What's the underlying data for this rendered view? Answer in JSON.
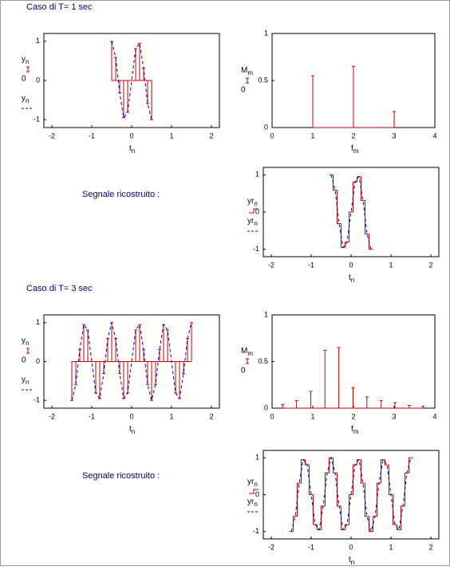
{
  "sections": [
    {
      "title": "Caso di T= 1 sec",
      "caption": "Segnale ricostruito :"
    },
    {
      "title": "Caso di T= 3 sec",
      "caption": "Segnale ricostruito :"
    }
  ],
  "chart_data": [
    {
      "type": "stem",
      "x": [
        -0.5,
        -0.4,
        -0.3,
        -0.2,
        -0.1,
        0,
        0.1,
        0.2,
        0.3,
        0.4,
        0.5
      ],
      "xlim": [
        -2.2,
        2.2
      ],
      "ylim": [
        -1.2,
        1.2
      ],
      "xticks": [
        -2,
        -1,
        0,
        1,
        2
      ],
      "yticks": [
        -1,
        0,
        1
      ],
      "xlabel": "t",
      "xlabel_sub": "n",
      "zero_label": "0",
      "series": [
        {
          "name": "y",
          "name_sub": "n",
          "color": "#cc0000",
          "values": [
            1,
            0.59,
            -0.31,
            -0.95,
            -0.81,
            0,
            0.81,
            0.95,
            0.31,
            -0.59,
            -1
          ]
        },
        {
          "name": "y",
          "name_sub": "n",
          "color": "#0000cc",
          "line": "dashed",
          "values": [
            1,
            0.59,
            -0.31,
            -0.95,
            -0.81,
            0,
            0.81,
            0.95,
            0.31,
            -0.59,
            -1
          ]
        }
      ]
    },
    {
      "type": "stem",
      "x": [
        1,
        2,
        3
      ],
      "xlim": [
        0,
        4
      ],
      "ylim": [
        0,
        1
      ],
      "xticks": [
        0,
        1,
        2,
        3,
        4
      ],
      "yticks": [
        0,
        0.5,
        1
      ],
      "xlabel": "f",
      "xlabel_sub": "m",
      "zero_label": "0",
      "series": [
        {
          "name": "M",
          "name_sub": "m",
          "color": "#cc0000",
          "values": [
            0.55,
            0.65,
            0.17
          ]
        }
      ]
    },
    {
      "type": "step",
      "x": [
        -0.5,
        -0.4,
        -0.3,
        -0.2,
        -0.1,
        0,
        0.1,
        0.2,
        0.3,
        0.4,
        0.5
      ],
      "xlim": [
        -2.2,
        2.2
      ],
      "ylim": [
        -1.2,
        1.2
      ],
      "xticks": [
        -2,
        -1,
        0,
        1,
        2
      ],
      "yticks": [
        -1,
        0,
        1
      ],
      "xlabel": "t",
      "xlabel_sub": "n",
      "series": [
        {
          "name": "yr",
          "name_sub": "n",
          "color": "#cc0000",
          "values": [
            1,
            0.59,
            -0.31,
            -0.95,
            -0.81,
            0,
            0.81,
            0.95,
            0.31,
            -0.59,
            -1
          ]
        },
        {
          "name": "yr",
          "name_sub": "n",
          "color": "#0000cc",
          "line": "dashed",
          "values": [
            1,
            0.59,
            -0.31,
            -0.95,
            -0.81,
            0,
            0.81,
            0.95,
            0.31,
            -0.59,
            -1
          ]
        }
      ]
    },
    {
      "type": "stem",
      "x": [
        -1.5,
        -1.4,
        -1.3,
        -1.2,
        -1.1,
        -1,
        -0.9,
        -0.8,
        -0.7,
        -0.6,
        -0.5,
        -0.4,
        -0.3,
        -0.2,
        -0.1,
        0,
        0.1,
        0.2,
        0.3,
        0.4,
        0.5,
        0.6,
        0.7,
        0.8,
        0.9,
        1,
        1.1,
        1.2,
        1.3,
        1.4,
        1.5
      ],
      "xlim": [
        -2.2,
        2.2
      ],
      "ylim": [
        -1.2,
        1.2
      ],
      "xticks": [
        -2,
        -1,
        0,
        1,
        2
      ],
      "yticks": [
        -1,
        0,
        1
      ],
      "xlabel": "t",
      "xlabel_sub": "n",
      "zero_label": "0",
      "series": [
        {
          "name": "y",
          "name_sub": "n",
          "color": "#cc0000",
          "values": [
            -1,
            -0.59,
            0.31,
            0.95,
            0.81,
            0,
            -0.81,
            -0.95,
            -0.31,
            0.59,
            1,
            0.59,
            -0.31,
            -0.95,
            -0.81,
            0,
            0.81,
            0.95,
            0.31,
            -0.59,
            -1,
            -0.59,
            0.31,
            0.95,
            0.81,
            0,
            -0.81,
            -0.95,
            -0.31,
            0.59,
            1
          ]
        },
        {
          "name": "y",
          "name_sub": "n",
          "color": "#0000cc",
          "line": "dashed",
          "values": [
            -1,
            -0.59,
            0.31,
            0.95,
            0.81,
            0,
            -0.81,
            -0.95,
            -0.31,
            0.59,
            1,
            0.59,
            -0.31,
            -0.95,
            -0.81,
            0,
            0.81,
            0.95,
            0.31,
            -0.59,
            -1,
            -0.59,
            0.31,
            0.95,
            0.81,
            0,
            -0.81,
            -0.95,
            -0.31,
            0.59,
            1
          ]
        }
      ]
    },
    {
      "type": "stem",
      "x": [
        0.26,
        0.6,
        0.95,
        1.3,
        1.64,
        1.99,
        2.33,
        2.68,
        3.02,
        3.37,
        3.71
      ],
      "xlim": [
        0,
        4
      ],
      "ylim": [
        0,
        1
      ],
      "xticks": [
        0,
        1,
        2,
        3,
        4
      ],
      "yticks": [
        0,
        0.5,
        1
      ],
      "xlabel": "f",
      "xlabel_sub": "m",
      "zero_label": "0",
      "series": [
        {
          "name": "M",
          "name_sub": "m",
          "color": "#cc0000",
          "values": [
            0.04,
            0.08,
            0.18,
            0.62,
            0.65,
            0.22,
            0.12,
            0.08,
            0.06,
            0.03,
            0.02
          ]
        }
      ]
    },
    {
      "type": "step",
      "x": [
        -1.5,
        -1.4,
        -1.3,
        -1.2,
        -1.1,
        -1,
        -0.9,
        -0.8,
        -0.7,
        -0.6,
        -0.5,
        -0.4,
        -0.3,
        -0.2,
        -0.1,
        0,
        0.1,
        0.2,
        0.3,
        0.4,
        0.5,
        0.6,
        0.7,
        0.8,
        0.9,
        1,
        1.1,
        1.2,
        1.3,
        1.4,
        1.5
      ],
      "xlim": [
        -2.2,
        2.2
      ],
      "ylim": [
        -1.2,
        1.2
      ],
      "xticks": [
        -2,
        -1,
        0,
        1,
        2
      ],
      "yticks": [
        -1,
        0,
        1
      ],
      "xlabel": "t",
      "xlabel_sub": "n",
      "series": [
        {
          "name": "yr",
          "name_sub": "n",
          "color": "#cc0000",
          "values": [
            -1,
            -0.59,
            0.31,
            0.95,
            0.81,
            0,
            -0.81,
            -0.95,
            -0.31,
            0.59,
            1,
            0.59,
            -0.31,
            -0.95,
            -0.81,
            0,
            0.81,
            0.95,
            0.31,
            -0.59,
            -1,
            -0.59,
            0.31,
            0.95,
            0.81,
            0,
            -0.81,
            -0.95,
            -0.31,
            0.59,
            1
          ]
        },
        {
          "name": "yr",
          "name_sub": "n",
          "color": "#0000cc",
          "line": "dashed",
          "values": [
            -1,
            -0.59,
            0.31,
            0.95,
            0.81,
            0,
            -0.81,
            -0.95,
            -0.31,
            0.59,
            1,
            0.59,
            -0.31,
            -0.95,
            -0.81,
            0,
            0.81,
            0.95,
            0.31,
            -0.59,
            -1,
            -0.59,
            0.31,
            0.95,
            0.81,
            0,
            -0.81,
            -0.95,
            -0.31,
            0.59,
            1
          ]
        }
      ]
    }
  ]
}
